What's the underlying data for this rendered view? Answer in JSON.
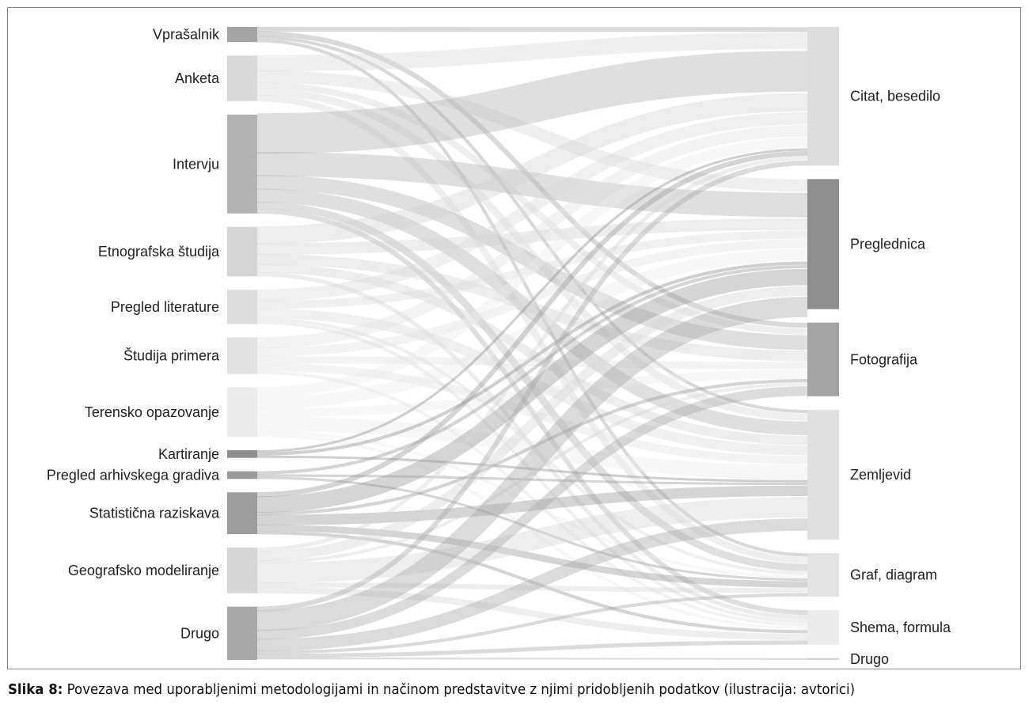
{
  "figure": {
    "sources": [
      {
        "id": "vprasalnik",
        "label": "Vprašalnik",
        "value": 2,
        "shade": "#a4a4a4"
      },
      {
        "id": "anketa",
        "label": "Anketa",
        "value": 6,
        "shade": "#d9d9d9"
      },
      {
        "id": "intervju",
        "label": "Intervju",
        "value": 13,
        "shade": "#b3b3b3"
      },
      {
        "id": "etnografska",
        "label": "Etnografska študija",
        "value": 6.5,
        "shade": "#d4d4d4"
      },
      {
        "id": "pregled-lit",
        "label": "Pregled literature",
        "value": 4.5,
        "shade": "#dcdcdc"
      },
      {
        "id": "studija-primera",
        "label": "Študija primera",
        "value": 4.8,
        "shade": "#e2e2e2"
      },
      {
        "id": "terensko",
        "label": "Terensko opazovanje",
        "value": 6.5,
        "shade": "#ececec"
      },
      {
        "id": "kartiranje",
        "label": "Kartiranje",
        "value": 1,
        "shade": "#8e8e8e"
      },
      {
        "id": "arhiv",
        "label": "Pregled arhivskega gradiva",
        "value": 1,
        "shade": "#9a9a9a"
      },
      {
        "id": "statisticna",
        "label": "Statistična raziskava",
        "value": 5.5,
        "shade": "#9c9c9c"
      },
      {
        "id": "modeliranje",
        "label": "Geografsko modeliranje",
        "value": 6,
        "shade": "#d6d6d6"
      },
      {
        "id": "drugo-src",
        "label": "Drugo",
        "value": 7,
        "shade": "#a9a9a9"
      }
    ],
    "targets": [
      {
        "id": "citat",
        "label": "Citat, besedilo",
        "value": 16,
        "shade": "#dcdcdc"
      },
      {
        "id": "preglednica",
        "label": "Preglednica",
        "value": 15,
        "shade": "#8d8d8d"
      },
      {
        "id": "fotografija",
        "label": "Fotografija",
        "value": 8.5,
        "shade": "#a4a4a4"
      },
      {
        "id": "zemljevid",
        "label": "Zemljevid",
        "value": 15,
        "shade": "#e0e0e0"
      },
      {
        "id": "graf",
        "label": "Graf, diagram",
        "value": 5,
        "shade": "#e3e3e3"
      },
      {
        "id": "shema",
        "label": "Shema, formula",
        "value": 4,
        "shade": "#ececec"
      },
      {
        "id": "drugo-tgt",
        "label": "Drugo",
        "value": 0.2,
        "shade": "#cfcfcf"
      }
    ],
    "links": [
      [
        "vprasalnik",
        "citat",
        0.6
      ],
      [
        "vprasalnik",
        "fotografija",
        0.6
      ],
      [
        "vprasalnik",
        "zemljevid",
        0.4
      ],
      [
        "vprasalnik",
        "graf",
        0.4
      ],
      [
        "anketa",
        "citat",
        2.0
      ],
      [
        "anketa",
        "preglednica",
        1.5
      ],
      [
        "anketa",
        "fotografija",
        0.8
      ],
      [
        "anketa",
        "zemljevid",
        0.9
      ],
      [
        "anketa",
        "graf",
        0.8
      ],
      [
        "intervju",
        "citat",
        5.0
      ],
      [
        "intervju",
        "preglednica",
        3.0
      ],
      [
        "intervju",
        "fotografija",
        1.8
      ],
      [
        "intervju",
        "zemljevid",
        1.7
      ],
      [
        "intervju",
        "graf",
        0.9
      ],
      [
        "intervju",
        "shema",
        0.6
      ],
      [
        "etnografska",
        "citat",
        2.2
      ],
      [
        "etnografska",
        "preglednica",
        1.4
      ],
      [
        "etnografska",
        "fotografija",
        1.3
      ],
      [
        "etnografska",
        "zemljevid",
        1.1
      ],
      [
        "etnografska",
        "shema",
        0.5
      ],
      [
        "pregled-lit",
        "citat",
        1.5
      ],
      [
        "pregled-lit",
        "preglednica",
        1.0
      ],
      [
        "pregled-lit",
        "zemljevid",
        1.2
      ],
      [
        "pregled-lit",
        "graf",
        0.4
      ],
      [
        "pregled-lit",
        "shema",
        0.4
      ],
      [
        "studija-primera",
        "citat",
        1.4
      ],
      [
        "studija-primera",
        "preglednica",
        1.1
      ],
      [
        "studija-primera",
        "fotografija",
        0.9
      ],
      [
        "studija-primera",
        "zemljevid",
        1.0
      ],
      [
        "studija-primera",
        "shema",
        0.4
      ],
      [
        "terensko",
        "citat",
        1.3
      ],
      [
        "terensko",
        "preglednica",
        1.5
      ],
      [
        "terensko",
        "fotografija",
        1.1
      ],
      [
        "terensko",
        "zemljevid",
        1.8
      ],
      [
        "terensko",
        "graf",
        0.4
      ],
      [
        "terensko",
        "shema",
        0.4
      ],
      [
        "kartiranje",
        "citat",
        0.3
      ],
      [
        "kartiranje",
        "preglednica",
        0.4
      ],
      [
        "kartiranje",
        "zemljevid",
        0.3
      ],
      [
        "arhiv",
        "preglednica",
        0.4
      ],
      [
        "arhiv",
        "zemljevid",
        0.3
      ],
      [
        "arhiv",
        "graf",
        0.3
      ],
      [
        "statisticna",
        "citat",
        0.6
      ],
      [
        "statisticna",
        "preglednica",
        2.0
      ],
      [
        "statisticna",
        "fotografija",
        0.4
      ],
      [
        "statisticna",
        "zemljevid",
        1.3
      ],
      [
        "statisticna",
        "graf",
        0.8
      ],
      [
        "statisticna",
        "shema",
        0.4
      ],
      [
        "modeliranje",
        "citat",
        0.5
      ],
      [
        "modeliranje",
        "preglednica",
        1.2
      ],
      [
        "modeliranje",
        "fotografija",
        0.4
      ],
      [
        "modeliranje",
        "zemljevid",
        2.5
      ],
      [
        "modeliranje",
        "graf",
        0.6
      ],
      [
        "modeliranje",
        "shema",
        0.8
      ],
      [
        "drugo-src",
        "citat",
        0.6
      ],
      [
        "drugo-src",
        "preglednica",
        2.5
      ],
      [
        "drugo-src",
        "fotografija",
        1.2
      ],
      [
        "drugo-src",
        "zemljevid",
        1.5
      ],
      [
        "drugo-src",
        "graf",
        0.4
      ],
      [
        "drugo-src",
        "shema",
        0.5
      ],
      [
        "drugo-src",
        "drugo-tgt",
        0.2
      ]
    ]
  },
  "caption": {
    "label": "Slika 8:",
    "text": "Povezava med uporabljenimi metodologijami in načinom predstavitve z njimi pridobljenih podatkov (ilustracija: avtorici)"
  }
}
